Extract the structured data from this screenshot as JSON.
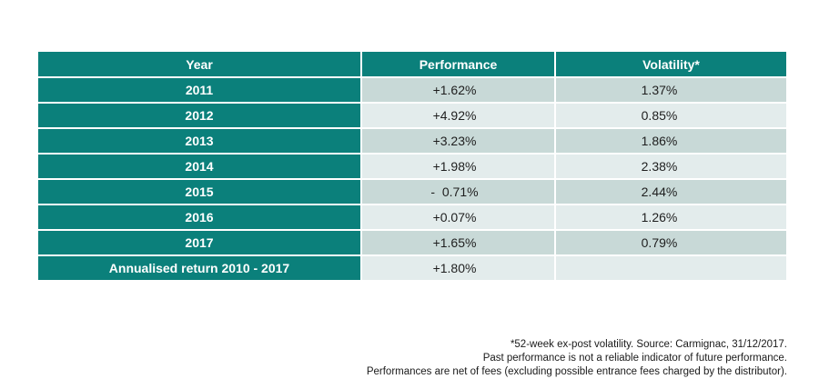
{
  "colors": {
    "header_bg": "#0b807b",
    "year_bg": "#0b807b",
    "row_dark": "#c8d9d7",
    "row_light": "#e3ecec",
    "text_light": "#ffffff",
    "text_dark": "#1e1e1e"
  },
  "table": {
    "headers": [
      "Year",
      "Performance",
      "Volatility*"
    ],
    "rows": [
      {
        "year": "2011",
        "performance": "+1.62%",
        "volatility": "1.37%"
      },
      {
        "year": "2012",
        "performance": "+4.92%",
        "volatility": "0.85%"
      },
      {
        "year": "2013",
        "performance": "+3.23%",
        "volatility": "1.86%"
      },
      {
        "year": "2014",
        "performance": "+1.98%",
        "volatility": "2.38%"
      },
      {
        "year": "2015",
        "performance": "-  0.71%",
        "volatility": "2.44%"
      },
      {
        "year": "2016",
        "performance": "+0.07%",
        "volatility": "1.26%"
      },
      {
        "year": "2017",
        "performance": "+1.65%",
        "volatility": "0.79%"
      }
    ],
    "annualised": {
      "label": "Annualised return 2010 - 2017",
      "performance": "+1.80%",
      "volatility": ""
    }
  },
  "footnotes": [
    "*52-week ex-post volatility. Source: Carmignac, 31/12/2017.",
    "Past performance is not a reliable indicator of future performance.",
    "Performances are net of fees (excluding possible entrance fees charged by the distributor)."
  ]
}
